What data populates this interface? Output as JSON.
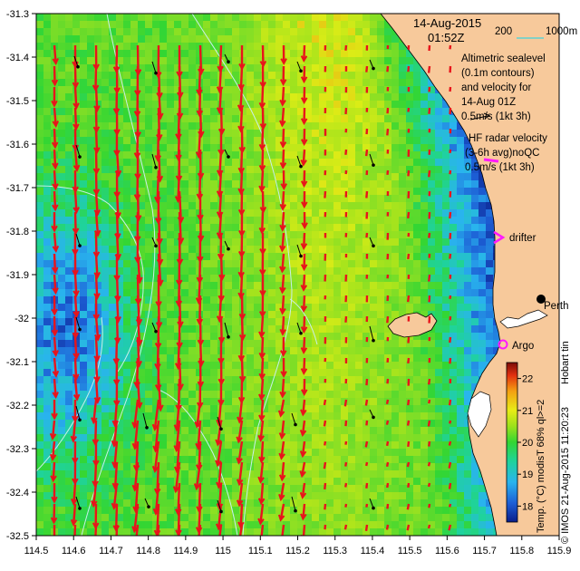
{
  "title": {
    "date": "14-Aug-2015",
    "time": "01:52Z"
  },
  "scale_bar": {
    "label_left": "200",
    "label_right": "1000m",
    "color": "#5fd3d3"
  },
  "annotations": {
    "altimetry_lines": [
      "Altimetric sealevel",
      "(0.1m contours)",
      "and velocity for",
      "14-Aug 01Z",
      "0.5m/s (1kt 3h)"
    ],
    "hf_lines": [
      "HF radar velocity",
      "(3-6h avg)noQC",
      "0.5m/s (1kt 3h)"
    ],
    "drifter": "drifter",
    "argo": "Argo",
    "city": "Perth",
    "cut_text": "Hobart tin",
    "credit": "© IMOS 21-Aug-2015 11:20:23",
    "colorbar_label": "Temp. (°C) modisT 68% ql>=2"
  },
  "colors": {
    "land": "#f7c99b",
    "hf_arrow": "#e8141b",
    "alt_arrow": "#000000",
    "contour": "#c8f0ea",
    "drifter_marker": "#ff19ff",
    "argo_marker": "#ff19ff"
  },
  "axes": {
    "x_ticks": [
      "114.5",
      "114.6",
      "114.7",
      "114.8",
      "114.9",
      "115",
      "115.1",
      "115.2",
      "115.3",
      "115.4",
      "115.5",
      "115.6",
      "115.7",
      "115.8",
      "115.9"
    ],
    "y_ticks": [
      "-31.3",
      "-31.4",
      "-31.5",
      "-31.6",
      "-31.7",
      "-31.8",
      "-31.9",
      "-32",
      "-32.1",
      "-32.2",
      "-32.3",
      "-32.4",
      "-32.5"
    ],
    "lon_range": [
      114.5,
      115.9
    ],
    "lat_range": [
      -32.5,
      -31.3
    ]
  },
  "colorbar": {
    "ticks": [
      "18",
      "19",
      "20",
      "21",
      "22"
    ],
    "range": [
      17.5,
      22.5
    ]
  }
}
